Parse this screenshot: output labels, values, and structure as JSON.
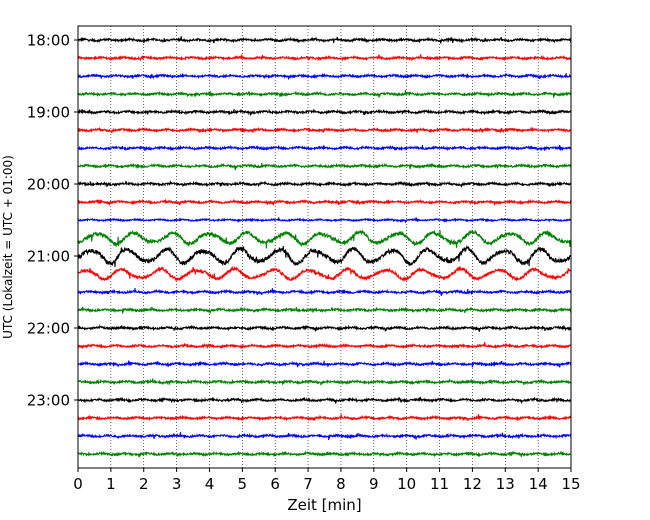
{
  "chart_data": {
    "type": "line",
    "title": "",
    "xlabel": "Zeit  [min]",
    "ylabel": "UTC (Lokalzeit = UTC + 01:00)",
    "xlim": [
      0,
      15
    ],
    "x_ticks": [
      "0",
      "1",
      "2",
      "3",
      "4",
      "5",
      "6",
      "7",
      "8",
      "9",
      "10",
      "11",
      "12",
      "13",
      "14",
      "15"
    ],
    "y_tick_labels": [
      "18:00",
      "19:00",
      "20:00",
      "21:00",
      "22:00",
      "23:00"
    ],
    "grid": "vertical dotted lines at each minute",
    "trace_colors": [
      "#000000",
      "#ff0000",
      "#0000ff",
      "#008000"
    ],
    "series": [
      {
        "start": "17:45",
        "trace": 0,
        "amplitude": 0.16
      },
      {
        "start": "18:00",
        "trace": 1,
        "amplitude": 0.16
      },
      {
        "start": "18:15",
        "trace": 2,
        "amplitude": 0.16
      },
      {
        "start": "18:30",
        "trace": 3,
        "amplitude": 0.16
      },
      {
        "start": "18:45",
        "trace": 4,
        "amplitude": 0.16
      },
      {
        "start": "19:00",
        "trace": 5,
        "amplitude": 0.16
      },
      {
        "start": "19:15",
        "trace": 6,
        "amplitude": 0.16
      },
      {
        "start": "19:30",
        "trace": 7,
        "amplitude": 0.16
      },
      {
        "start": "19:45",
        "trace": 8,
        "amplitude": 0.16
      },
      {
        "start": "20:00",
        "trace": 9,
        "amplitude": 0.16
      },
      {
        "start": "20:15",
        "trace": 10,
        "amplitude": 0.12
      },
      {
        "start": "20:30",
        "trace": 11,
        "amplitude": 0.3
      },
      {
        "start": "20:45",
        "trace": 12,
        "amplitude": 0.38
      },
      {
        "start": "21:00",
        "trace": 13,
        "amplitude": 0.26
      },
      {
        "start": "21:15",
        "trace": 14,
        "amplitude": 0.16
      },
      {
        "start": "21:30",
        "trace": 15,
        "amplitude": 0.16
      },
      {
        "start": "21:45",
        "trace": 16,
        "amplitude": 0.16
      },
      {
        "start": "22:00",
        "trace": 17,
        "amplitude": 0.16
      },
      {
        "start": "22:15",
        "trace": 18,
        "amplitude": 0.16
      },
      {
        "start": "22:30",
        "trace": 19,
        "amplitude": 0.16
      },
      {
        "start": "22:45",
        "trace": 20,
        "amplitude": 0.16
      },
      {
        "start": "23:00",
        "trace": 21,
        "amplitude": 0.16
      },
      {
        "start": "23:15",
        "trace": 22,
        "amplitude": 0.16
      },
      {
        "start": "23:30",
        "trace": 23,
        "amplitude": 0.16
      }
    ]
  }
}
